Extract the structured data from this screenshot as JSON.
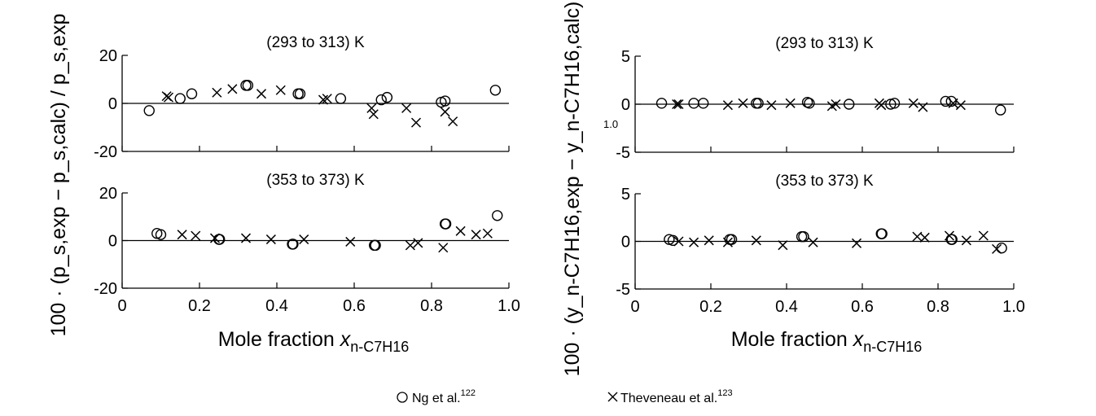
{
  "figure": {
    "ylabel_left": "100 · (p_s,exp − p_s,calc) / p_s,exp",
    "ylabel_right": "100 · (y_n-C7H16,exp − y_n-C7H16,calc)",
    "xlabel_main": "Mole fraction ",
    "xlabel_var": "x",
    "xlabel_sub": "n-C7H16",
    "stray_label": "1.0",
    "legend": [
      {
        "marker": "circle",
        "name": "Ng et al.",
        "ref": "122"
      },
      {
        "marker": "cross",
        "name": "Theveneau et al.",
        "ref": "123"
      }
    ]
  },
  "chart_data": [
    {
      "type": "scatter",
      "title": "(293 to 313) K",
      "ylim": [
        -20,
        20
      ],
      "yticks": [
        -20,
        0,
        20
      ],
      "xlim": [
        0,
        1.0
      ],
      "xticks": [
        "0",
        "0.2",
        "0.4",
        "0.6",
        "0.8",
        "1.0"
      ],
      "xtick_values": [
        0,
        0.2,
        0.4,
        0.6,
        0.8,
        1.0
      ],
      "show_xticklabels": false,
      "series": [
        {
          "name": "Ng et al.",
          "marker": "circle",
          "x": [
            0.07,
            0.15,
            0.18,
            0.32,
            0.325,
            0.455,
            0.46,
            0.565,
            0.67,
            0.685,
            0.825,
            0.835,
            0.965
          ],
          "y": [
            -3,
            2,
            4,
            7.5,
            7.5,
            4,
            4,
            2,
            1.5,
            2.5,
            0.5,
            1,
            5.5
          ]
        },
        {
          "name": "Theveneau et al.",
          "marker": "cross",
          "x": [
            0.115,
            0.12,
            0.245,
            0.285,
            0.36,
            0.41,
            0.52,
            0.53,
            0.645,
            0.65,
            0.735,
            0.76,
            0.835,
            0.855
          ],
          "y": [
            3,
            2.5,
            4.5,
            6,
            4,
            5.5,
            1.5,
            2,
            -2,
            -4.5,
            -2,
            -8,
            -3.5,
            -7.5
          ]
        }
      ]
    },
    {
      "type": "scatter",
      "title": "(353 to 373) K",
      "ylim": [
        -20,
        20
      ],
      "yticks": [
        -20,
        0,
        20
      ],
      "xlim": [
        0,
        1.0
      ],
      "xticks": [
        "0",
        "0.2",
        "0.4",
        "0.6",
        "0.8",
        "1.0"
      ],
      "xtick_values": [
        0,
        0.2,
        0.4,
        0.6,
        0.8,
        1.0
      ],
      "show_xticklabels": true,
      "series": [
        {
          "name": "Ng et al.",
          "marker": "circle",
          "x": [
            0.09,
            0.1,
            0.25,
            0.252,
            0.44,
            0.442,
            0.652,
            0.655,
            0.835,
            0.837,
            0.97
          ],
          "y": [
            3,
            2.5,
            0.5,
            0.5,
            -1.5,
            -1.5,
            -2,
            -2,
            7,
            7,
            10.5
          ]
        },
        {
          "name": "Theveneau et al.",
          "marker": "cross",
          "x": [
            0.155,
            0.19,
            0.24,
            0.32,
            0.385,
            0.47,
            0.59,
            0.745,
            0.765,
            0.83,
            0.875,
            0.915,
            0.945
          ],
          "y": [
            2.5,
            2,
            1,
            1,
            0.5,
            0.5,
            -0.5,
            -2,
            -1,
            -3,
            4,
            2.5,
            3
          ]
        }
      ]
    },
    {
      "type": "scatter",
      "title": "(293 to 313) K",
      "ylim": [
        -5,
        5
      ],
      "yticks": [
        -5,
        0,
        5
      ],
      "xlim": [
        0,
        1.0
      ],
      "xticks": [
        "0",
        "0.2",
        "0.4",
        "0.6",
        "0.8",
        "1.0"
      ],
      "xtick_values": [
        0,
        0.2,
        0.4,
        0.6,
        0.8,
        1.0
      ],
      "show_xticklabels": false,
      "series": [
        {
          "name": "Ng et al.",
          "marker": "circle",
          "x": [
            0.07,
            0.155,
            0.18,
            0.32,
            0.325,
            0.455,
            0.46,
            0.565,
            0.675,
            0.685,
            0.82,
            0.835,
            0.965
          ],
          "y": [
            0.1,
            0.1,
            0.1,
            0.1,
            0.1,
            0.2,
            0.1,
            0.0,
            0.0,
            0.1,
            0.3,
            0.3,
            -0.6
          ]
        },
        {
          "name": "Theveneau et al.",
          "marker": "cross",
          "x": [
            0.11,
            0.115,
            0.245,
            0.285,
            0.36,
            0.41,
            0.52,
            0.53,
            0.645,
            0.65,
            0.735,
            0.76,
            0.84,
            0.86
          ],
          "y": [
            0.0,
            0.0,
            -0.1,
            0.1,
            -0.1,
            0.1,
            -0.2,
            0.0,
            0.1,
            -0.1,
            0.1,
            -0.3,
            0.1,
            -0.1
          ]
        }
      ]
    },
    {
      "type": "scatter",
      "title": "(353 to 373) K",
      "ylim": [
        -5,
        5
      ],
      "yticks": [
        -5,
        0,
        5
      ],
      "xlim": [
        0,
        1.0
      ],
      "xticks": [
        "0",
        "0.2",
        "0.4",
        "0.6",
        "0.8",
        "1.0"
      ],
      "xtick_values": [
        0,
        0.2,
        0.4,
        0.6,
        0.8,
        1.0
      ],
      "show_xticklabels": true,
      "series": [
        {
          "name": "Ng et al.",
          "marker": "circle",
          "x": [
            0.09,
            0.1,
            0.25,
            0.255,
            0.44,
            0.445,
            0.65,
            0.652,
            0.835,
            0.837,
            0.968
          ],
          "y": [
            0.2,
            0.1,
            0.2,
            0.2,
            0.5,
            0.5,
            0.8,
            0.8,
            0.2,
            0.2,
            -0.7
          ]
        },
        {
          "name": "Theveneau et al.",
          "marker": "cross",
          "x": [
            0.115,
            0.155,
            0.195,
            0.245,
            0.32,
            0.39,
            0.47,
            0.585,
            0.745,
            0.765,
            0.83,
            0.875,
            0.92,
            0.955
          ],
          "y": [
            0.0,
            -0.1,
            0.1,
            -0.1,
            0.1,
            -0.4,
            -0.1,
            -0.2,
            0.5,
            0.4,
            0.6,
            0.1,
            0.6,
            -0.8
          ]
        }
      ]
    }
  ]
}
